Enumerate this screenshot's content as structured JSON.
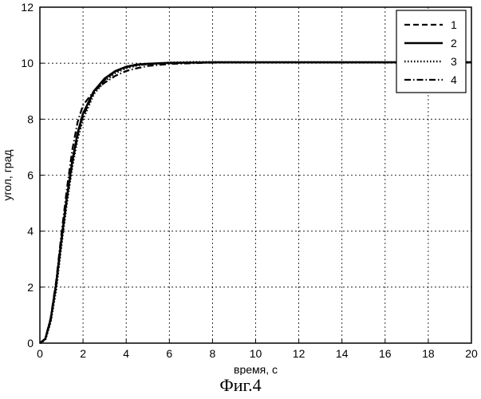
{
  "caption": "Фиг.4",
  "chart_data": {
    "type": "line",
    "xlabel": "время, с",
    "ylabel": "угол, град",
    "xlim": [
      0,
      20
    ],
    "ylim": [
      0,
      12
    ],
    "x_ticks": [
      0,
      2,
      4,
      6,
      8,
      10,
      12,
      14,
      16,
      18,
      20
    ],
    "y_ticks": [
      0,
      2,
      4,
      6,
      8,
      10,
      12
    ],
    "grid": true,
    "legend_position": "top-right",
    "x": [
      0,
      0.25,
      0.5,
      0.75,
      1,
      1.25,
      1.5,
      1.75,
      2,
      2.5,
      3,
      3.5,
      4,
      4.5,
      5,
      6,
      7,
      8,
      10,
      12,
      14,
      16,
      18,
      20
    ],
    "series": [
      {
        "name": "1",
        "style": "dashed",
        "values": [
          0,
          0.15,
          0.8,
          2.0,
          3.6,
          5.1,
          6.4,
          7.4,
          8.1,
          8.95,
          9.4,
          9.7,
          9.85,
          9.93,
          9.97,
          10.0,
          10.02,
          10.03,
          10.03,
          10.03,
          10.03,
          10.03,
          10.03,
          10.03
        ]
      },
      {
        "name": "2",
        "style": "solid",
        "values": [
          0,
          0.15,
          0.85,
          2.1,
          3.7,
          5.2,
          6.5,
          7.5,
          8.2,
          9.0,
          9.45,
          9.72,
          9.87,
          9.95,
          9.98,
          10.01,
          10.02,
          10.03,
          10.03,
          10.03,
          10.03,
          10.03,
          10.03,
          10.03
        ]
      },
      {
        "name": "3",
        "style": "dotted",
        "values": [
          0,
          0.12,
          0.75,
          1.9,
          3.5,
          5.0,
          6.3,
          7.3,
          8.0,
          8.9,
          9.35,
          9.65,
          9.82,
          9.92,
          9.97,
          10.02,
          10.04,
          10.04,
          10.03,
          10.03,
          10.03,
          10.03,
          10.03,
          10.03
        ]
      },
      {
        "name": "4",
        "style": "dashdot",
        "values": [
          0,
          0.16,
          0.9,
          2.2,
          3.9,
          5.5,
          6.9,
          7.9,
          8.5,
          9.0,
          9.3,
          9.55,
          9.72,
          9.82,
          9.9,
          9.97,
          10.0,
          10.02,
          10.03,
          10.03,
          10.03,
          10.03,
          10.03,
          10.03
        ]
      }
    ]
  }
}
